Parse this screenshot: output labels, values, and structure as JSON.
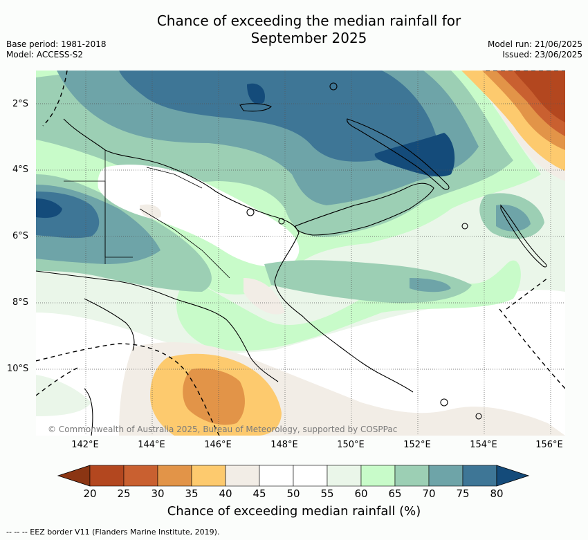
{
  "title_line1": "Chance of exceeding the median rainfall for",
  "title_line2": "September 2025",
  "meta_left": {
    "base_period": "Base period: 1981-2018",
    "model": "Model: ACCESS-S2"
  },
  "meta_right": {
    "model_run": "Model run: 21/06/2025",
    "issued": "Issued: 23/06/2025"
  },
  "lat_labels": [
    "2°S",
    "4°S",
    "6°S",
    "8°S",
    "10°S"
  ],
  "lon_labels": [
    "142°E",
    "144°E",
    "146°E",
    "148°E",
    "150°E",
    "152°E",
    "154°E",
    "156°E"
  ],
  "credit": "© Commonwealth of Australia 2025, Bureau of Meteorology, supported by COSPPac",
  "colorbar": {
    "ticks": [
      "20",
      "25",
      "30",
      "35",
      "40",
      "45",
      "50",
      "55",
      "60",
      "65",
      "70",
      "75",
      "80"
    ],
    "label": "Chance of exceeding median rainfall (%)",
    "colors": [
      "#8b3513",
      "#b3471f",
      "#c96030",
      "#e29448",
      "#fdca6e",
      "#f2ede6",
      "#ffffff",
      "#ffffff",
      "#eaf6e9",
      "#c8fbc9",
      "#9ccfb4",
      "#6ea4a8",
      "#3e7696",
      "#144b7a"
    ]
  },
  "footnote": "--  --  -- EEZ border V11 (Flanders Marine Institute, 2019)."
}
